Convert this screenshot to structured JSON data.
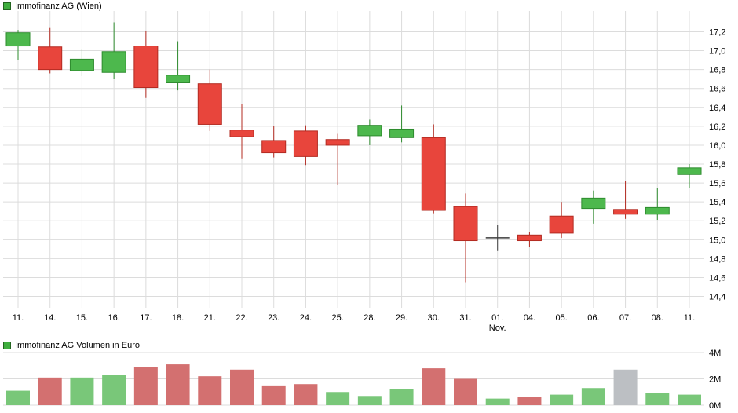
{
  "colors": {
    "up": "#4db84d",
    "down": "#e8453c",
    "up_border": "#2e8b2e",
    "down_border": "#b32b22",
    "neutral": "#3c3c3c",
    "vol_up": "#79c779",
    "vol_down": "#d37070",
    "vol_neutral": "#bcbfc3",
    "grid": "#dcdcdc",
    "axis_text": "#000000"
  },
  "chart_data": [
    {
      "type": "candlestick",
      "title": "Immofinanz AG (Wien)",
      "ylabel": "",
      "ylim": [
        14.28,
        17.42
      ],
      "grid": true,
      "yticks": [
        {
          "value": 17.2,
          "label": "17,2"
        },
        {
          "value": 17.0,
          "label": "17,0"
        },
        {
          "value": 16.8,
          "label": "16,8"
        },
        {
          "value": 16.6,
          "label": "16,6"
        },
        {
          "value": 16.4,
          "label": "16,4"
        },
        {
          "value": 16.2,
          "label": "16,2"
        },
        {
          "value": 16.0,
          "label": "16,0"
        },
        {
          "value": 15.8,
          "label": "15,8"
        },
        {
          "value": 15.6,
          "label": "15,6"
        },
        {
          "value": 15.4,
          "label": "15,4"
        },
        {
          "value": 15.2,
          "label": "15,2"
        },
        {
          "value": 15.0,
          "label": "15,0"
        },
        {
          "value": 14.8,
          "label": "14,8"
        },
        {
          "value": 14.6,
          "label": "14,6"
        },
        {
          "value": 14.4,
          "label": "14,4"
        }
      ],
      "month_label": {
        "text": "Nov.",
        "index": 15
      },
      "ohlc": [
        {
          "date": "11.",
          "open": 17.05,
          "high": 17.22,
          "low": 16.9,
          "close": 17.19,
          "dir": "up"
        },
        {
          "date": "14.",
          "open": 17.04,
          "high": 17.24,
          "low": 16.76,
          "close": 16.8,
          "dir": "down"
        },
        {
          "date": "15.",
          "open": 16.79,
          "high": 17.02,
          "low": 16.73,
          "close": 16.91,
          "dir": "up"
        },
        {
          "date": "16.",
          "open": 16.77,
          "high": 17.3,
          "low": 16.7,
          "close": 16.99,
          "dir": "up"
        },
        {
          "date": "17.",
          "open": 17.05,
          "high": 17.21,
          "low": 16.5,
          "close": 16.61,
          "dir": "down"
        },
        {
          "date": "18.",
          "open": 16.66,
          "high": 17.1,
          "low": 16.58,
          "close": 16.74,
          "dir": "up"
        },
        {
          "date": "21.",
          "open": 16.65,
          "high": 16.8,
          "low": 16.15,
          "close": 16.22,
          "dir": "down"
        },
        {
          "date": "22.",
          "open": 16.16,
          "high": 16.44,
          "low": 15.86,
          "close": 16.09,
          "dir": "down"
        },
        {
          "date": "23.",
          "open": 16.05,
          "high": 16.2,
          "low": 15.87,
          "close": 15.92,
          "dir": "down"
        },
        {
          "date": "24.",
          "open": 16.15,
          "high": 16.21,
          "low": 15.79,
          "close": 15.88,
          "dir": "down"
        },
        {
          "date": "25.",
          "open": 16.06,
          "high": 16.12,
          "low": 15.58,
          "close": 16.0,
          "dir": "down"
        },
        {
          "date": "28.",
          "open": 16.1,
          "high": 16.27,
          "low": 16.0,
          "close": 16.21,
          "dir": "up"
        },
        {
          "date": "29.",
          "open": 16.08,
          "high": 16.42,
          "low": 16.03,
          "close": 16.17,
          "dir": "up"
        },
        {
          "date": "30.",
          "open": 16.08,
          "high": 16.22,
          "low": 15.28,
          "close": 15.31,
          "dir": "down"
        },
        {
          "date": "31.",
          "open": 15.35,
          "high": 15.49,
          "low": 14.55,
          "close": 14.99,
          "dir": "down"
        },
        {
          "date": "01.",
          "open": 15.02,
          "high": 15.16,
          "low": 14.88,
          "close": 15.02,
          "dir": "neutral"
        },
        {
          "date": "04.",
          "open": 15.05,
          "high": 15.08,
          "low": 14.92,
          "close": 14.99,
          "dir": "down"
        },
        {
          "date": "05.",
          "open": 15.25,
          "high": 15.4,
          "low": 15.02,
          "close": 15.07,
          "dir": "down"
        },
        {
          "date": "06.",
          "open": 15.33,
          "high": 15.52,
          "low": 15.17,
          "close": 15.44,
          "dir": "up"
        },
        {
          "date": "07.",
          "open": 15.32,
          "high": 15.62,
          "low": 15.22,
          "close": 15.27,
          "dir": "down"
        },
        {
          "date": "08.",
          "open": 15.27,
          "high": 15.55,
          "low": 15.21,
          "close": 15.34,
          "dir": "up"
        },
        {
          "date": "11.",
          "open": 15.69,
          "high": 15.8,
          "low": 15.55,
          "close": 15.76,
          "dir": "up"
        }
      ]
    },
    {
      "type": "bar",
      "title": "Immofinanz AG Volumen in Euro",
      "ylim": [
        0,
        4.3
      ],
      "grid": true,
      "yticks": [
        {
          "value": 4,
          "label": "4M"
        },
        {
          "value": 2,
          "label": "2M"
        },
        {
          "value": 0,
          "label": "0M"
        }
      ],
      "categories": [
        "11.",
        "14.",
        "15.",
        "16.",
        "17.",
        "18.",
        "21.",
        "22.",
        "23.",
        "24.",
        "25.",
        "28.",
        "29.",
        "30.",
        "31.",
        "01.",
        "04.",
        "05.",
        "06.",
        "07.",
        "08.",
        "11."
      ],
      "values": [
        1.1,
        2.1,
        2.1,
        2.3,
        2.9,
        3.1,
        2.2,
        2.7,
        1.5,
        1.6,
        1.0,
        0.7,
        1.2,
        2.8,
        2.0,
        0.5,
        0.6,
        0.8,
        1.3,
        2.7,
        0.9,
        0.8
      ],
      "bar_dirs": [
        "up",
        "down",
        "up",
        "up",
        "down",
        "down",
        "down",
        "down",
        "down",
        "down",
        "up",
        "up",
        "up",
        "down",
        "down",
        "up",
        "down",
        "up",
        "up",
        "neutral",
        "up",
        "up"
      ]
    }
  ]
}
